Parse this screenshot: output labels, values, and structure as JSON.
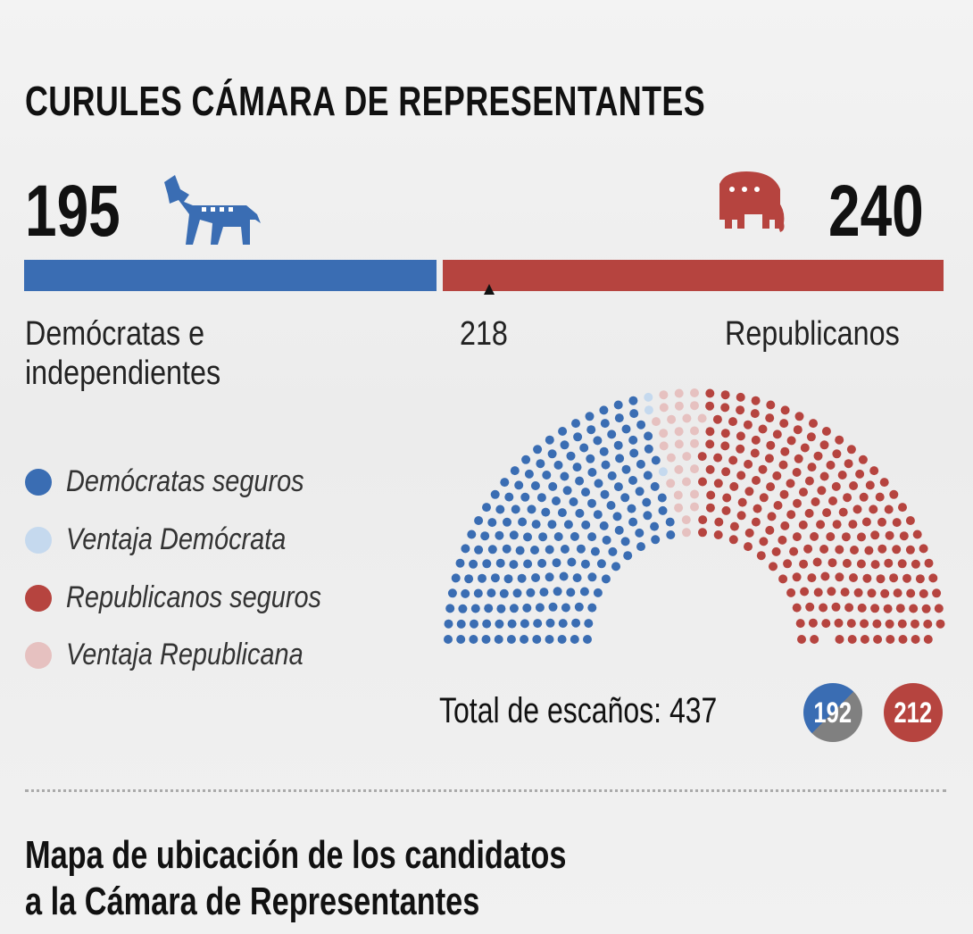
{
  "title": "CURULES CÁMARA DE REPRESENTANTES",
  "democrats": {
    "total": "195",
    "label_line1": "Demócratas e",
    "label_line2": "independientes",
    "icon": "donkey-icon"
  },
  "republicans": {
    "total": "240",
    "label": "Republicanos",
    "icon": "elephant-icon"
  },
  "majority": "218",
  "legend": [
    {
      "label": "Demócratas seguros",
      "color": "#3a6db3"
    },
    {
      "label": "Ventaja Demócrata",
      "color": "#c5d9ee"
    },
    {
      "label": "Republicanos seguros",
      "color": "#b6443f"
    },
    {
      "label": "Ventaja Republicana",
      "color": "#e6c1c0"
    }
  ],
  "total_label": "Total de escaños: 437",
  "badges": {
    "dem": "192",
    "rep": "212"
  },
  "subtitle_line1": "Mapa de ubicación de los candidatos",
  "subtitle_line2": "a la Cámara de Representantes",
  "chart_data": {
    "type": "parliament",
    "title": "CURULES CÁMARA DE REPRESENTANTES",
    "total_seats": 437,
    "majority": 218,
    "bar": [
      {
        "name": "Demócratas e independientes",
        "value": 195,
        "color": "#3a6db3"
      },
      {
        "name": "Republicanos",
        "value": 240,
        "color": "#b6443f"
      }
    ],
    "series": [
      {
        "name": "Demócratas seguros",
        "value": 192,
        "color": "#3a6db3"
      },
      {
        "name": "Ventaja Demócrata",
        "value": 3,
        "color": "#c5d9ee"
      },
      {
        "name": "Ventaja Republicana",
        "value": 28,
        "color": "#e6c1c0"
      },
      {
        "name": "Republicanos seguros",
        "value": 212,
        "color": "#b6443f"
      }
    ]
  }
}
